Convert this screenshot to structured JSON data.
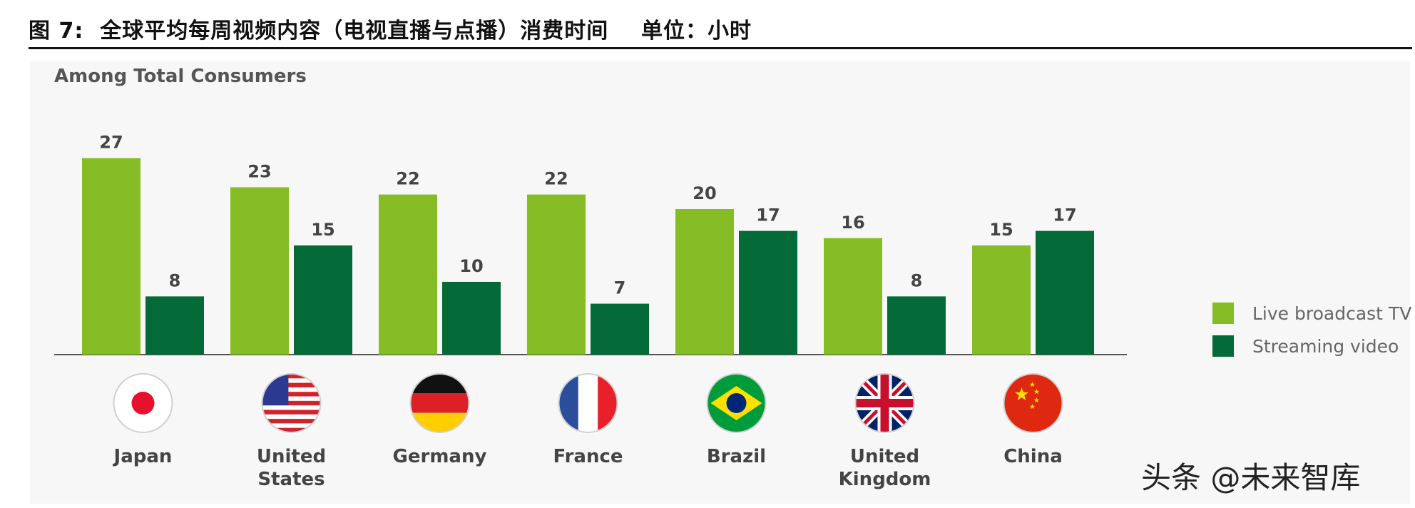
{
  "figure_title": "图 7:  全球平均每周视频内容（电视直播与点播）消费时间    单位：小时",
  "watermark": "头条 @未来智库",
  "colors": {
    "live": "#86bc25",
    "streaming": "#046a38",
    "baseline": "#555555"
  },
  "chart_data": {
    "type": "bar",
    "title": "Among Total Consumers",
    "categories": [
      "Japan",
      "United\nStates",
      "Germany",
      "France",
      "Brazil",
      "United\nKingdom",
      "China"
    ],
    "series": [
      {
        "name": "Live broadcast TV",
        "values": [
          27,
          23,
          22,
          22,
          20,
          16,
          15
        ]
      },
      {
        "name": "Streaming video",
        "values": [
          8,
          15,
          10,
          7,
          17,
          8,
          17
        ]
      }
    ],
    "ylim": [
      0,
      27
    ],
    "grid": false,
    "legend": "right",
    "flag_icons": [
      "japan-flag-icon",
      "usa-flag-icon",
      "germany-flag-icon",
      "france-flag-icon",
      "brazil-flag-icon",
      "uk-flag-icon",
      "china-flag-icon"
    ]
  }
}
